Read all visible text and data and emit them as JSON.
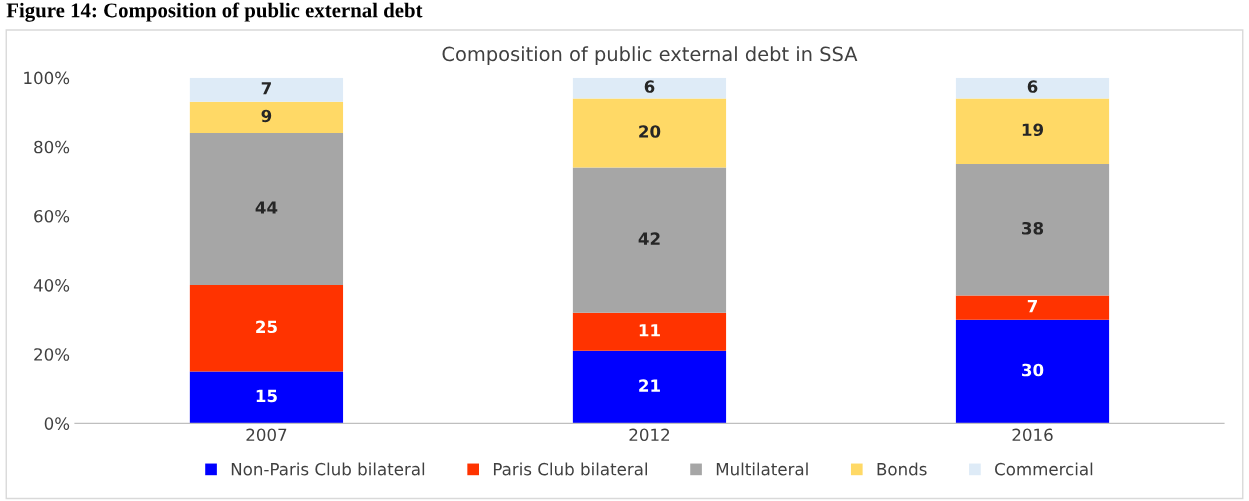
{
  "chart_data": {
    "type": "bar",
    "title": "Composition of public external debt in SSA",
    "annotations": [
      "Figure 14: Composition of public external debt"
    ],
    "categories": [
      "2007",
      "2012",
      "2016"
    ],
    "stacked": true,
    "series": [
      {
        "name": "Non-Paris Club bilateral",
        "color": "#0000ff",
        "values": [
          15,
          21,
          30
        ]
      },
      {
        "name": "Paris Club bilateral",
        "color": "#ff3300",
        "values": [
          25,
          11,
          7
        ]
      },
      {
        "name": "Multilateral",
        "color": "#a6a6a6",
        "values": [
          44,
          42,
          38
        ]
      },
      {
        "name": "Bonds",
        "color": "#ffd966",
        "values": [
          9,
          20,
          19
        ]
      },
      {
        "name": "Commercial",
        "color": "#deebf7",
        "values": [
          7,
          6,
          6
        ]
      }
    ],
    "ylim": [
      0,
      100
    ],
    "yticks": [
      {
        "value": 0,
        "label": "0%"
      },
      {
        "value": 20,
        "label": "20%"
      },
      {
        "value": 40,
        "label": "40%"
      },
      {
        "value": 60,
        "label": "60%"
      },
      {
        "value": 80,
        "label": "80%"
      },
      {
        "value": 100,
        "label": "100%"
      }
    ],
    "data_labels": true,
    "grid": false,
    "legend": "bottom"
  }
}
